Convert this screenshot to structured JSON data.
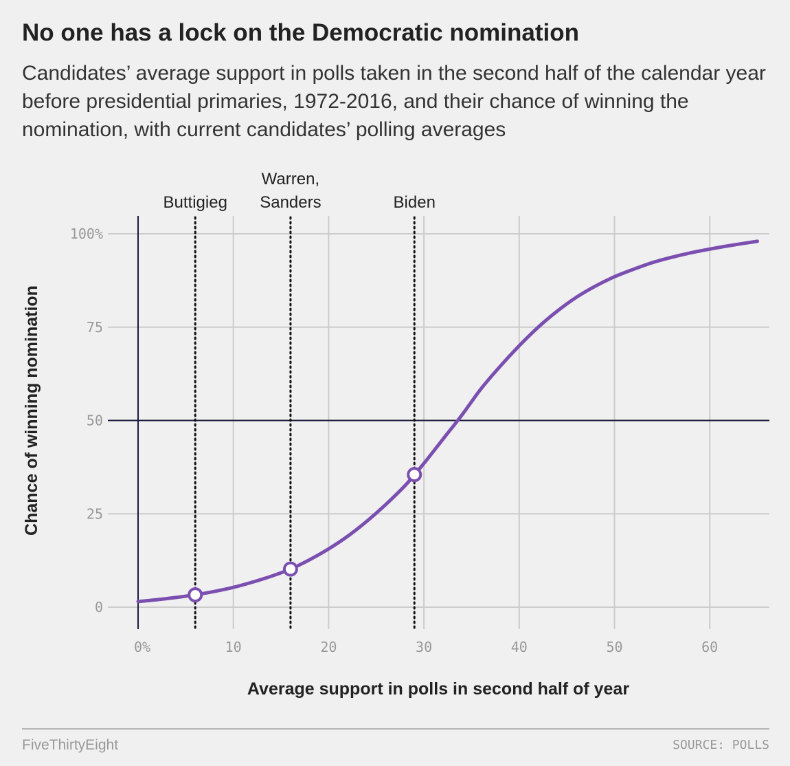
{
  "title": "No one has a lock on the Democratic nomination",
  "subtitle": "Candidates’ average support in polls taken in the second half of the calendar year before presidential primaries, 1972-2016, and their chance of winning the nomination, with current candidates’ polling averages",
  "footer": {
    "brand": "FiveThirtyEight",
    "source": "SOURCE: POLLS"
  },
  "colors": {
    "curve": "#7b4fb0",
    "grid": "#cccccc",
    "axis": "#1a1a3a",
    "background": "#f0f0f0"
  },
  "chart_data": {
    "type": "line",
    "xlabel": "Average support in polls in second half of year",
    "ylabel": "Chance of winning nomination",
    "xlim": [
      0,
      66
    ],
    "ylim": [
      0,
      100
    ],
    "x_ticks": [
      0,
      10,
      20,
      30,
      40,
      50,
      60
    ],
    "x_tick_labels": [
      "0%",
      "10",
      "20",
      "30",
      "40",
      "50",
      "60"
    ],
    "y_ticks": [
      0,
      25,
      50,
      75,
      100
    ],
    "y_tick_labels": [
      "0",
      "25",
      "50",
      "75",
      "100%"
    ],
    "grid": true,
    "reference_line_y": 50,
    "series": [
      {
        "x": [
          0,
          2,
          4,
          6,
          8,
          10,
          12,
          14,
          16,
          18,
          20,
          22,
          24,
          26,
          28,
          29,
          30,
          32,
          34,
          36,
          38,
          40,
          42,
          44,
          46,
          48,
          50,
          52,
          54,
          56,
          58,
          60,
          62,
          65
        ],
        "y": [
          1.5,
          2.0,
          2.6,
          3.3,
          4.2,
          5.3,
          6.7,
          8.3,
          10.2,
          12.7,
          15.6,
          19.0,
          23.0,
          27.5,
          32.5,
          35.5,
          38.5,
          45.0,
          51.5,
          58.5,
          64.5,
          70.0,
          75.0,
          79.3,
          83.0,
          86.0,
          88.5,
          90.5,
          92.3,
          93.7,
          94.9,
          95.9,
          96.8,
          98.0
        ]
      }
    ],
    "candidates": [
      {
        "label": "Buttigieg",
        "x": 6,
        "y": 3.3
      },
      {
        "label": "Warren,\nSanders",
        "x": 16,
        "y": 10.2
      },
      {
        "label": "Biden",
        "x": 29,
        "y": 35.5
      }
    ]
  }
}
